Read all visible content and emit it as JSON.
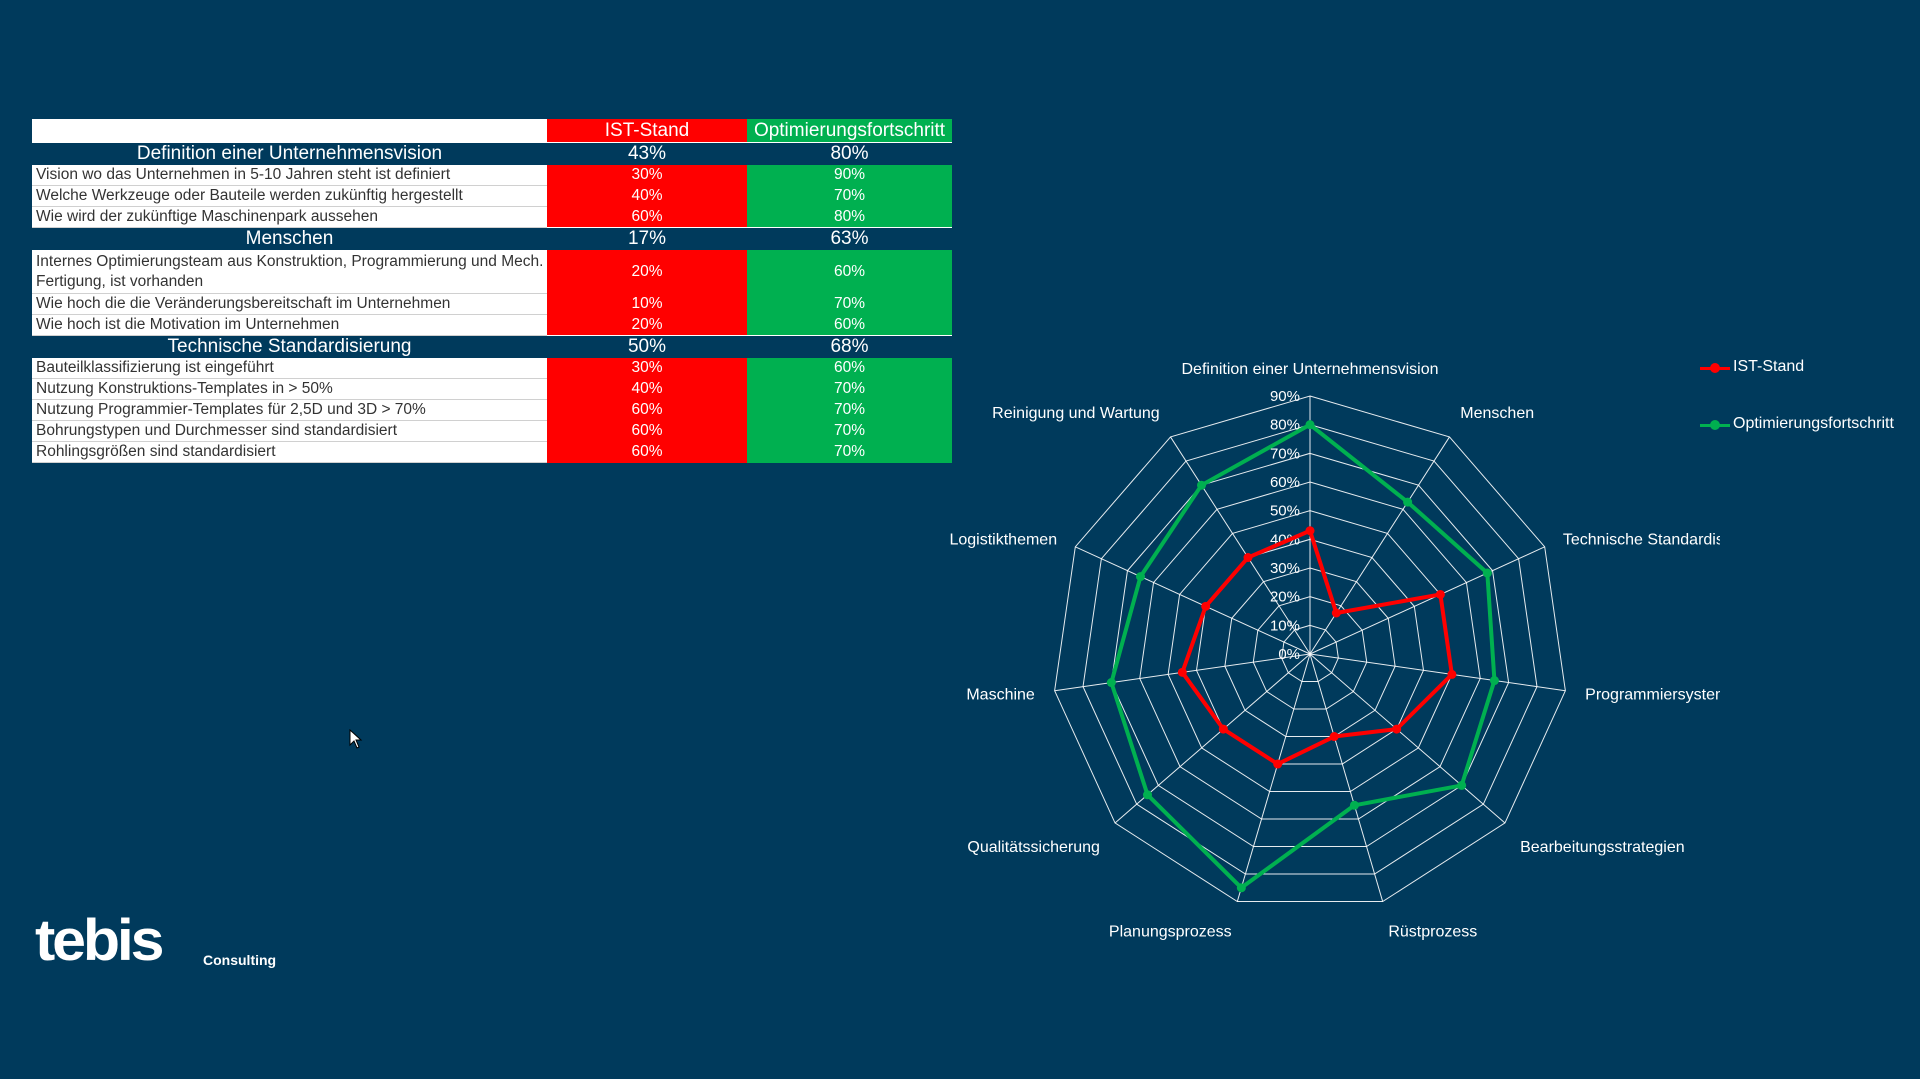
{
  "table": {
    "header": {
      "ist": "IST-Stand",
      "opt": "Optimierungsfortschritt"
    },
    "sections": [
      {
        "title": "Definition einer Unternehmensvision",
        "ist": "43%",
        "opt": "80%",
        "items": [
          {
            "label": "Vision wo das Unternehmen in 5-10 Jahren steht ist definiert",
            "ist": "30%",
            "opt": "90%"
          },
          {
            "label": "Welche Werkzeuge oder Bauteile werden zukünftig hergestellt",
            "ist": "40%",
            "opt": "70%"
          },
          {
            "label": "Wie wird der zukünftige Maschinenpark aussehen",
            "ist": "60%",
            "opt": "80%"
          }
        ]
      },
      {
        "title": "Menschen",
        "ist": "17%",
        "opt": "63%",
        "items": [
          {
            "label": "Internes Optimierungsteam aus Konstruktion, Programmierung und Mech. Fertigung, ist vorhanden",
            "ist": "20%",
            "opt": "60%"
          },
          {
            "label": "Wie hoch die die Veränderungsbereitschaft im Unternehmen",
            "ist": "10%",
            "opt": "70%"
          },
          {
            "label": "Wie hoch ist die Motivation im Unternehmen",
            "ist": "20%",
            "opt": "60%"
          }
        ]
      },
      {
        "title": "Technische Standardisierung",
        "ist": "50%",
        "opt": "68%",
        "items": [
          {
            "label": "Bauteilklassifizierung ist eingeführt",
            "ist": "30%",
            "opt": "60%"
          },
          {
            "label": "Nutzung Konstruktions-Templates in > 50%",
            "ist": "40%",
            "opt": "70%"
          },
          {
            "label": "Nutzung Programmier-Templates für 2,5D und 3D > 70%",
            "ist": "60%",
            "opt": "70%"
          },
          {
            "label": "Bohrungstypen und Durchmesser sind standardisiert",
            "ist": "60%",
            "opt": "70%"
          },
          {
            "label": "Rohlingsgrößen sind standardisiert",
            "ist": "60%",
            "opt": "70%"
          }
        ]
      }
    ]
  },
  "chart_data": {
    "type": "radar",
    "categories": [
      "Definition einer Unternehmensvision",
      "Menschen",
      "Technische Standardisierung",
      "Programmiersystem",
      "Bearbeitungsstrategien",
      "Rüstprozess",
      "Planungsprozess",
      "Qualitätssicherung",
      "Maschine",
      "Logistikthemen",
      "Reinigung und Wartung"
    ],
    "series": [
      {
        "name": "IST-Stand",
        "color": "#ff0000",
        "values": [
          43,
          17,
          50,
          50,
          40,
          30,
          40,
          40,
          45,
          40,
          40
        ]
      },
      {
        "name": "Optimierungsfortschritt",
        "color": "#00b050",
        "values": [
          80,
          63,
          68,
          65,
          70,
          55,
          85,
          75,
          70,
          65,
          70
        ]
      }
    ],
    "rlim": [
      0,
      90
    ],
    "ticks": [
      "0%",
      "10%",
      "20%",
      "30%",
      "40%",
      "50%",
      "60%",
      "70%",
      "80%",
      "90%"
    ],
    "grid": true,
    "legend_position": "top-right"
  },
  "logo": {
    "mark": "tebis",
    "sub": "Consulting"
  },
  "cursor_icon": "mouse-pointer-icon"
}
